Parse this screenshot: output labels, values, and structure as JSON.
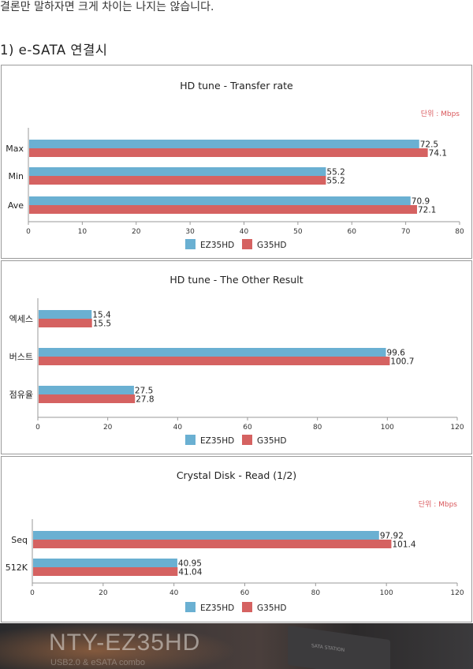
{
  "intro_text": "결론만 말하자면 크게 차이는 나지는 않습니다.",
  "section_heading": "1) e-SATA 연결시",
  "photo": {
    "brand": "NTY-EZ35HD",
    "sub": "USB2.0 & eSATA combo"
  },
  "chart_data": [
    {
      "type": "bar",
      "orientation": "horizontal",
      "title": "HD tune - Transfer rate",
      "unit_label": "단위 : Mbps",
      "categories": [
        "Max",
        "Min",
        "Ave"
      ],
      "series": [
        {
          "name": "EZ35HD",
          "values": [
            72.5,
            55.2,
            70.9
          ],
          "labels": [
            "72.5",
            "55.2",
            "70.9"
          ]
        },
        {
          "name": "G35HD",
          "values": [
            74.1,
            55.2,
            72.1
          ],
          "labels": [
            "74.1",
            "55.2",
            "72.1"
          ]
        }
      ],
      "xlim": [
        0,
        80
      ],
      "xticks": [
        0,
        10,
        20,
        30,
        40,
        50,
        60,
        70,
        80
      ],
      "legend": "bottom",
      "grid": false,
      "colors": [
        "#6ab0d2",
        "#d56261"
      ]
    },
    {
      "type": "bar",
      "orientation": "horizontal",
      "title": "HD tune - The Other Result",
      "unit_label": "",
      "categories": [
        "엑세스",
        "버스트",
        "점유율"
      ],
      "series": [
        {
          "name": "EZ35HD",
          "values": [
            15.4,
            99.6,
            27.5
          ],
          "labels": [
            "15.4",
            "99.6",
            "27.5"
          ]
        },
        {
          "name": "G35HD",
          "values": [
            15.5,
            100.7,
            27.8
          ],
          "labels": [
            "15.5",
            "100.7",
            "27.8"
          ]
        }
      ],
      "xlim": [
        0,
        120
      ],
      "xticks": [
        0,
        20,
        40,
        60,
        80,
        100,
        120
      ],
      "legend": "bottom",
      "grid": false,
      "colors": [
        "#6ab0d2",
        "#d56261"
      ]
    },
    {
      "type": "bar",
      "orientation": "horizontal",
      "title": "Crystal Disk - Read (1/2)",
      "unit_label": "단위 : Mbps",
      "categories": [
        "Seq",
        "512K"
      ],
      "series": [
        {
          "name": "EZ35HD",
          "values": [
            97.92,
            40.95
          ],
          "labels": [
            "97.92",
            "40.95"
          ]
        },
        {
          "name": "G35HD",
          "values": [
            101.4,
            41.04
          ],
          "labels": [
            "101.4",
            "41.04"
          ]
        }
      ],
      "xlim": [
        0,
        120
      ],
      "xticks": [
        0,
        20,
        40,
        60,
        80,
        100,
        120
      ],
      "legend": "bottom",
      "grid": false,
      "colors": [
        "#6ab0d2",
        "#d56261"
      ]
    }
  ]
}
